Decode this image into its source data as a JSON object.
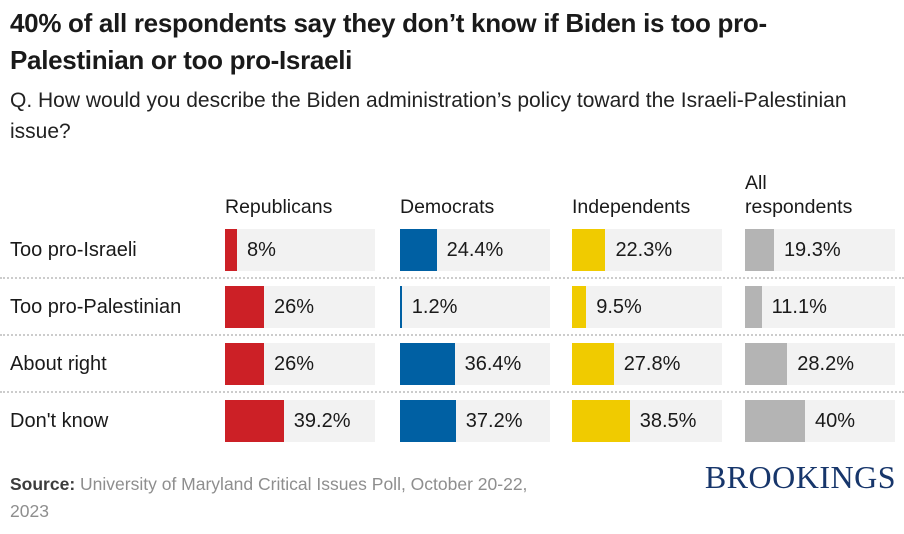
{
  "title": "40% of all respondents say they don’t know if Biden is too pro-Palestinian or too pro-Israeli",
  "question": "Q. How would you describe the Biden administration’s policy toward the Israeli-Palestinian issue?",
  "chart_data": {
    "type": "bar",
    "orientation": "horizontal",
    "title": "40% of all respondents say they don’t know if Biden is too pro-Palestinian or too pro-Israeli",
    "subtitle": "Q. How would you describe the Biden administration’s policy toward the Israeli-Palestinian issue?",
    "unit": "%",
    "xlim": [
      0,
      100
    ],
    "grid": false,
    "legend_position": "column-headers",
    "track_color": "#f2f2f2",
    "columns": [
      {
        "name": "Republicans",
        "color": "#cc2026"
      },
      {
        "name": "Democrats",
        "color": "#0060a3"
      },
      {
        "name": "Independents",
        "color": "#f0cb00"
      },
      {
        "name": "All respondents",
        "color": "#b4b4b4"
      }
    ],
    "rows": [
      {
        "label": "Too pro-Israeli",
        "cells": [
          {
            "value": 8,
            "label": "8%"
          },
          {
            "value": 24.4,
            "label": "24.4%"
          },
          {
            "value": 22.3,
            "label": "22.3%"
          },
          {
            "value": 19.3,
            "label": "19.3%"
          }
        ]
      },
      {
        "label": "Too pro-Palestinian",
        "cells": [
          {
            "value": 26,
            "label": "26%"
          },
          {
            "value": 1.2,
            "label": "1.2%"
          },
          {
            "value": 9.5,
            "label": "9.5%"
          },
          {
            "value": 11.1,
            "label": "11.1%"
          }
        ]
      },
      {
        "label": "About right",
        "cells": [
          {
            "value": 26,
            "label": "26%"
          },
          {
            "value": 36.4,
            "label": "36.4%"
          },
          {
            "value": 27.8,
            "label": "27.8%"
          },
          {
            "value": 28.2,
            "label": "28.2%"
          }
        ]
      },
      {
        "label": "Don't know",
        "cells": [
          {
            "value": 39.2,
            "label": "39.2%"
          },
          {
            "value": 37.2,
            "label": "37.2%"
          },
          {
            "value": 38.5,
            "label": "38.5%"
          },
          {
            "value": 40,
            "label": "40%"
          }
        ]
      }
    ],
    "source": {
      "prefix": "Source:",
      "line1": "University of Maryland Critical Issues Poll, October 20-22,",
      "line2": "2023"
    },
    "logo": "BROOKINGS"
  }
}
